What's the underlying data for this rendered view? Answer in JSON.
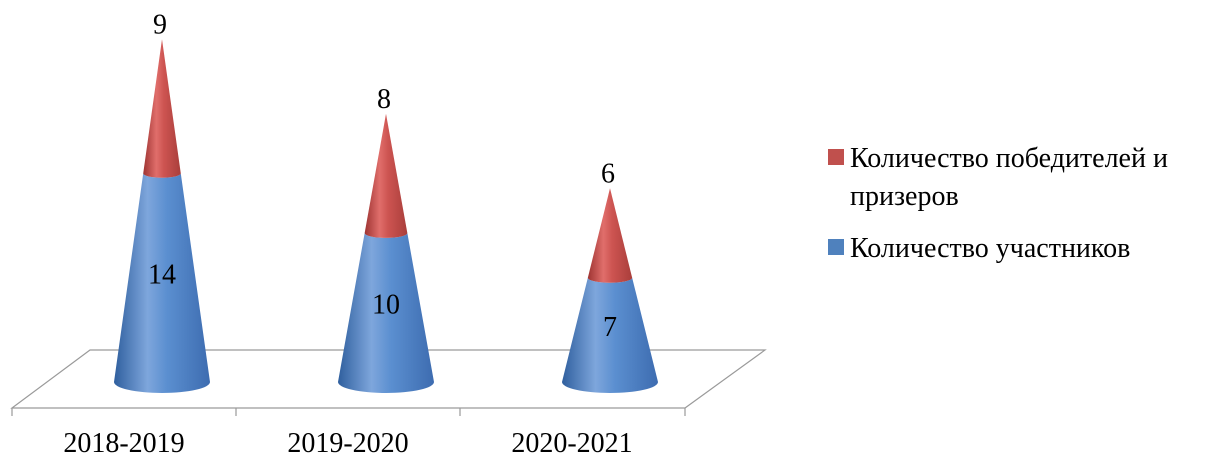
{
  "chart_data": {
    "type": "bar",
    "shape": "cone",
    "stacked": true,
    "categories": [
      "2018-2019",
      "2019-2020",
      "2020-2021"
    ],
    "series": [
      {
        "name": "Количество участников",
        "values": [
          14,
          10,
          7
        ],
        "color": "#4f81bd"
      },
      {
        "name": "Количество победителей и призеров",
        "values": [
          9,
          8,
          6
        ],
        "color": "#c0504d"
      }
    ],
    "ylim": [
      0,
      23
    ],
    "legend_position": "right",
    "grid": false
  },
  "legend": {
    "items": [
      {
        "label": "Количество победителей и призеров",
        "color": "#c0504d"
      },
      {
        "label": "Количество участников",
        "color": "#4f81bd"
      }
    ]
  }
}
